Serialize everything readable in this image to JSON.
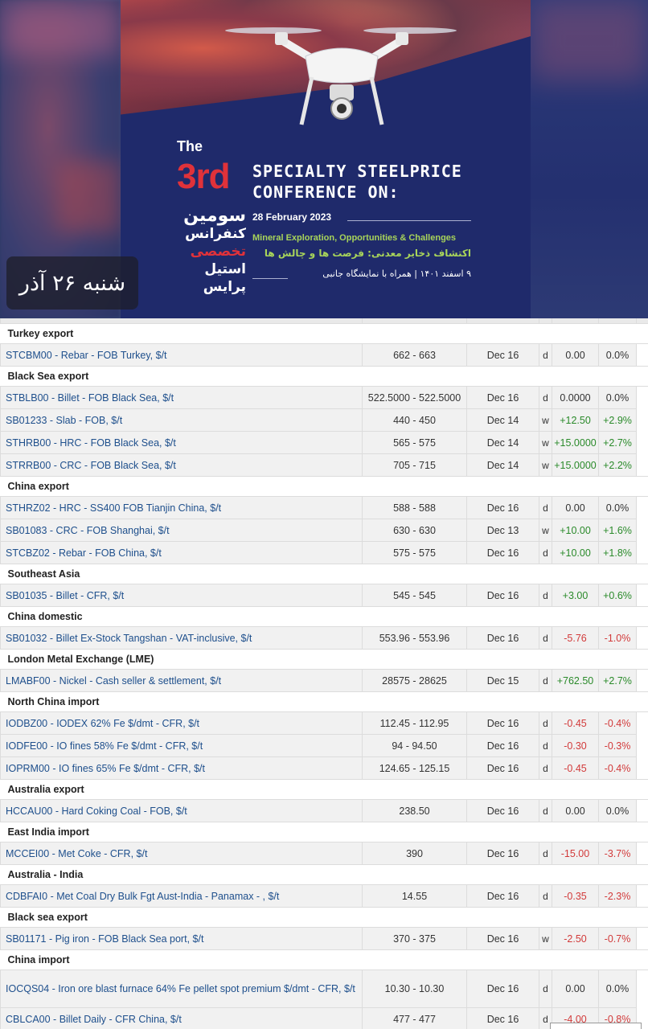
{
  "banner": {
    "the": "The",
    "third": "3rd",
    "conf_line1": "SPECIALTY STEELPRICE",
    "conf_line2": "CONFERENCE ON:",
    "fa_title": [
      "سومین",
      "کنفرانس",
      "تخصصی",
      "استیل پرایس"
    ],
    "date": "28 February 2023",
    "subtitle_en": "Mineral Exploration, Opportunities & Challenges",
    "subtitle_fa": "اکتشاف ذخایر معدنی: فرصت ها و چالش ها",
    "note_fa": "۹ اسفند ۱۴۰۱ | همراه با نمایشگاه جانبی",
    "date_chip": "شنبه ۲۶ آذر"
  },
  "colors": {
    "name_link": "#1e4f8c",
    "positive": "#2a8a2a",
    "negative": "#d23a3a",
    "accent_red": "#e0323a",
    "accent_green": "#a8d45a"
  },
  "sections": [
    {
      "title": "Turkey export",
      "rows": [
        {
          "name": "STCBM00 - Rebar - FOB Turkey, $/t",
          "range": "662 - 663",
          "date": "Dec 16",
          "period": "d",
          "change": "0.00",
          "pct": "0.0%",
          "dir": "zero"
        }
      ]
    },
    {
      "title": "Black Sea export",
      "rows": [
        {
          "name": "STBLB00 - Billet - FOB Black Sea, $/t",
          "range": "522.5000 - 522.5000",
          "date": "Dec 16",
          "period": "d",
          "change": "0.0000",
          "pct": "0.0%",
          "dir": "zero"
        },
        {
          "name": "SB01233 - Slab - FOB, $/t",
          "range": "440 - 450",
          "date": "Dec 14",
          "period": "w",
          "change": "+12.50",
          "pct": "+2.9%",
          "dir": "pos"
        },
        {
          "name": "STHRB00 - HRC - FOB Black Sea, $/t",
          "range": "565 - 575",
          "date": "Dec 14",
          "period": "w",
          "change": "+15.0000",
          "pct": "+2.7%",
          "dir": "pos"
        },
        {
          "name": "STRRB00 - CRC - FOB Black Sea, $/t",
          "range": "705 - 715",
          "date": "Dec 14",
          "period": "w",
          "change": "+15.0000",
          "pct": "+2.2%",
          "dir": "pos"
        }
      ]
    },
    {
      "title": "China export",
      "rows": [
        {
          "name": "STHRZ02 - HRC - SS400 FOB Tianjin China, $/t",
          "range": "588 - 588",
          "date": "Dec 16",
          "period": "d",
          "change": "0.00",
          "pct": "0.0%",
          "dir": "zero"
        },
        {
          "name": "SB01083 - CRC - FOB Shanghai, $/t",
          "range": "630 - 630",
          "date": "Dec 13",
          "period": "w",
          "change": "+10.00",
          "pct": "+1.6%",
          "dir": "pos"
        },
        {
          "name": "STCBZ02 - Rebar - FOB China, $/t",
          "range": "575 - 575",
          "date": "Dec 16",
          "period": "d",
          "change": "+10.00",
          "pct": "+1.8%",
          "dir": "pos"
        }
      ]
    },
    {
      "title": "Southeast Asia",
      "rows": [
        {
          "name": "SB01035 - Billet - CFR, $/t",
          "range": "545 - 545",
          "date": "Dec 16",
          "period": "d",
          "change": "+3.00",
          "pct": "+0.6%",
          "dir": "pos"
        }
      ]
    },
    {
      "title": "China domestic",
      "rows": [
        {
          "name": "SB01032 - Billet Ex-Stock Tangshan - VAT-inclusive, $/t",
          "range": "553.96 - 553.96",
          "date": "Dec 16",
          "period": "d",
          "change": "-5.76",
          "pct": "-1.0%",
          "dir": "neg"
        }
      ]
    },
    {
      "title": "London Metal Exchange (LME)",
      "rows": [
        {
          "name": "LMABF00 - Nickel - Cash seller & settlement, $/t",
          "range": "28575 - 28625",
          "date": "Dec 15",
          "period": "d",
          "change": "+762.50",
          "pct": "+2.7%",
          "dir": "pos"
        }
      ]
    },
    {
      "title": "North China import",
      "rows": [
        {
          "name": "IODBZ00 - IODEX 62% Fe $/dmt - CFR, $/t",
          "range": "112.45 - 112.95",
          "date": "Dec 16",
          "period": "d",
          "change": "-0.45",
          "pct": "-0.4%",
          "dir": "neg"
        },
        {
          "name": "IODFE00 - IO fines 58% Fe $/dmt - CFR, $/t",
          "range": "94 - 94.50",
          "date": "Dec 16",
          "period": "d",
          "change": "-0.30",
          "pct": "-0.3%",
          "dir": "neg"
        },
        {
          "name": "IOPRM00 - IO fines 65% Fe $/dmt - CFR, $/t",
          "range": "124.65 - 125.15",
          "date": "Dec 16",
          "period": "d",
          "change": "-0.45",
          "pct": "-0.4%",
          "dir": "neg"
        }
      ]
    },
    {
      "title": "Australia export",
      "rows": [
        {
          "name": "HCCAU00 - Hard Coking Coal - FOB, $/t",
          "range": "238.50",
          "date": "Dec 16",
          "period": "d",
          "change": "0.00",
          "pct": "0.0%",
          "dir": "zero"
        }
      ]
    },
    {
      "title": "East India import",
      "rows": [
        {
          "name": "MCCEI00 - Met Coke - CFR, $/t",
          "range": "390",
          "date": "Dec 16",
          "period": "d",
          "change": "-15.00",
          "pct": "-3.7%",
          "dir": "neg"
        }
      ]
    },
    {
      "title": "Australia - India",
      "rows": [
        {
          "name": "CDBFAI0 - Met Coal Dry Bulk Fgt Aust-India - Panamax - , $/t",
          "range": "14.55",
          "date": "Dec 16",
          "period": "d",
          "change": "-0.35",
          "pct": "-2.3%",
          "dir": "neg"
        }
      ]
    },
    {
      "title": "Black sea export",
      "rows": [
        {
          "name": "SB01171 - Pig iron - FOB Black Sea port, $/t",
          "range": "370 - 375",
          "date": "Dec 16",
          "period": "w",
          "change": "-2.50",
          "pct": "-0.7%",
          "dir": "neg"
        }
      ]
    },
    {
      "title": "China import",
      "rows": [
        {
          "name": "IOCQS04 - Iron ore blast furnace 64% Fe pellet spot premium $/dmt - CFR, $/t",
          "range": "10.30 - 10.30",
          "date": "Dec 16",
          "period": "d",
          "change": "0.00",
          "pct": "0.0%",
          "dir": "zero",
          "wrap": true
        },
        {
          "name": "CBLCA00 - Billet Daily - CFR China, $/t",
          "range": "477 - 477",
          "date": "Dec 16",
          "period": "d",
          "change": "-4.00",
          "pct": "-0.8%",
          "dir": "neg"
        }
      ]
    }
  ]
}
